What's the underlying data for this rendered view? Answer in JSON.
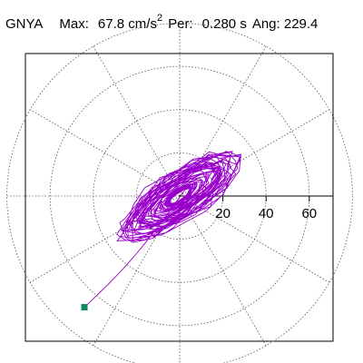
{
  "header": {
    "station": "GNYA",
    "max_label": "Max:",
    "max_value": "67.8",
    "max_unit": "cm/s",
    "max_unit_exp": "2",
    "per_label": "Per:",
    "per_value": "0.280",
    "per_unit": "s",
    "ang_label": "Ang:",
    "ang_value": "229.4"
  },
  "chart_data": {
    "type": "polar-orbit",
    "radial_ticks": [
      20,
      40,
      60
    ],
    "radial_tick_labels": [
      "20",
      "40",
      "60"
    ],
    "rings": [
      20,
      40,
      60,
      80
    ],
    "spokes_deg": [
      0,
      30,
      60,
      90,
      120,
      150,
      180,
      210,
      240,
      270,
      300,
      330
    ],
    "max_amplitude": 67.8,
    "max_angle_deg": 229.4,
    "trace_color": "#9900cc",
    "marker_color": "#108a5a",
    "grid": true
  }
}
